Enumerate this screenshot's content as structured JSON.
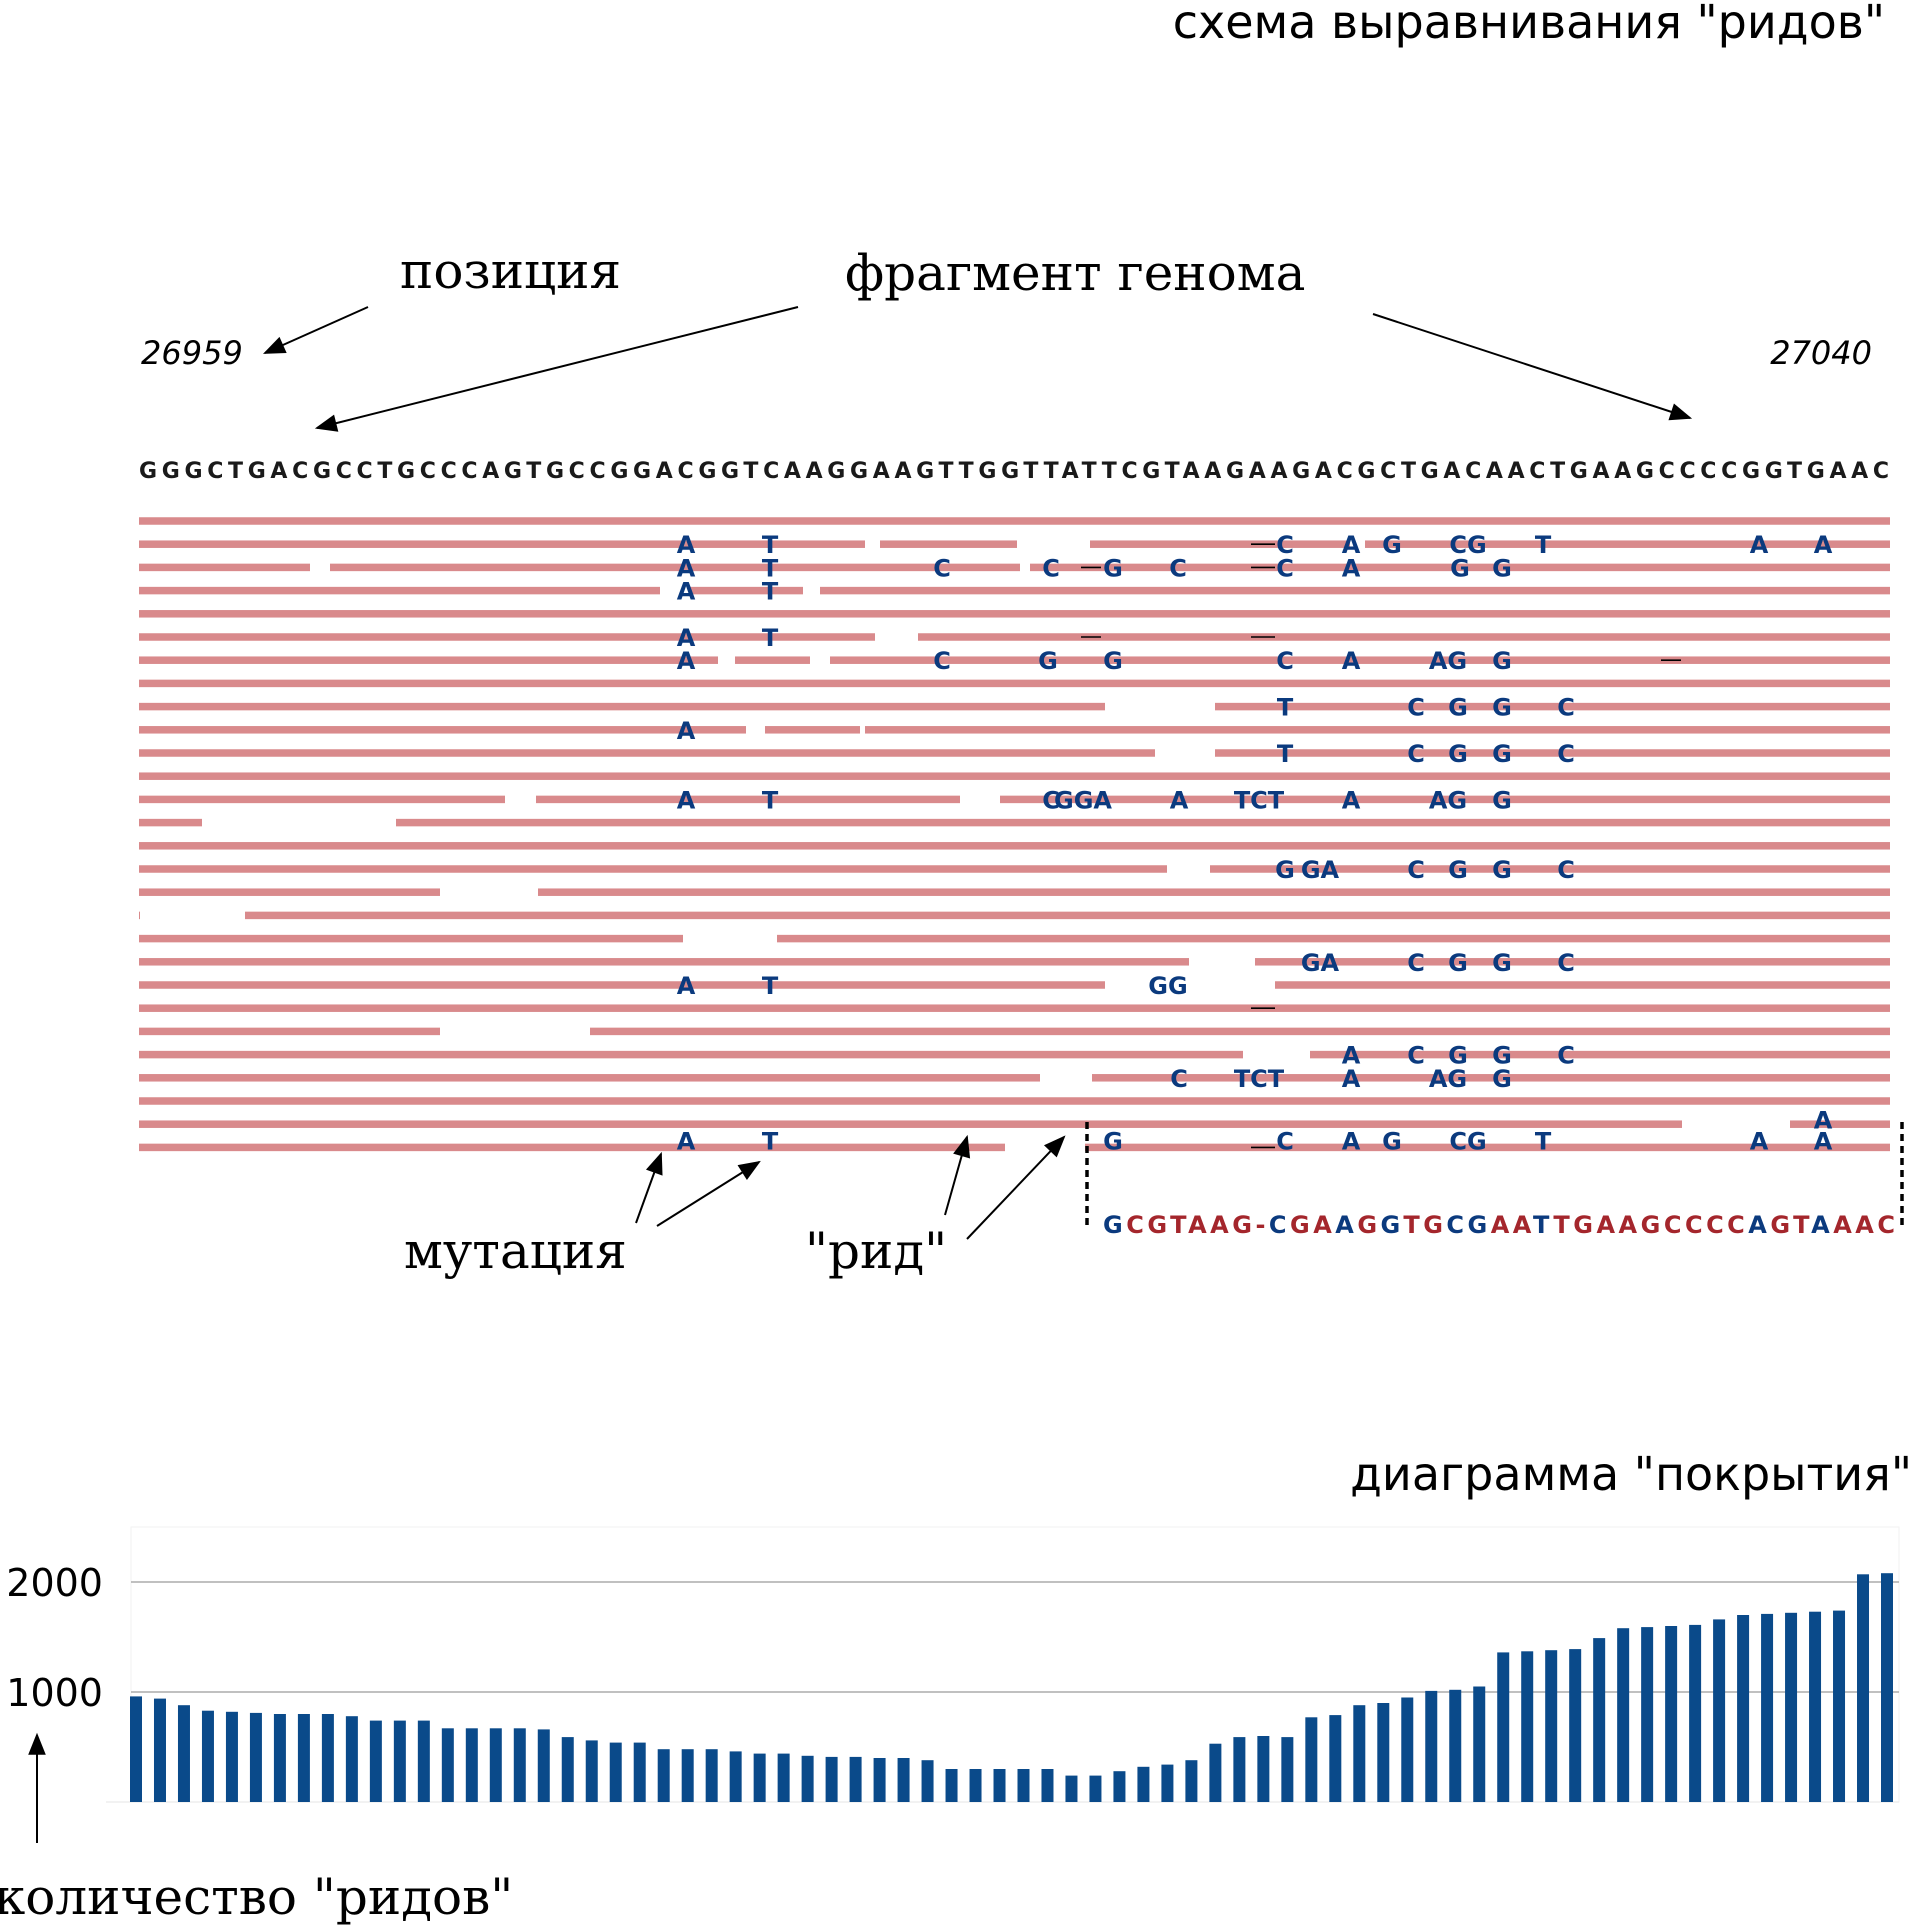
{
  "titles": {
    "alignment": "схема выравнивания \"ридов\"",
    "coverage": "диаграмма \"покрытия\""
  },
  "labels": {
    "position": "позиция",
    "genome_fragment": "фрагмент генома",
    "mutation": "мутация",
    "read": "\"рид\"",
    "read_count": "количество \"ридов\""
  },
  "positions": {
    "start": "26959",
    "end": "27040"
  },
  "reference": "GGGCTGACGCCTGCCCAGTGCCGGACGGTCAAGGAAGTTGGTTATTCGTAAGAAGACGCTGACAACTGAAGCCCCGGTGAAC",
  "read_detail": [
    [
      "G",
      "m"
    ],
    [
      "C",
      "r"
    ],
    [
      "G",
      "r"
    ],
    [
      "T",
      "r"
    ],
    [
      "A",
      "r"
    ],
    [
      "A",
      "r"
    ],
    [
      "G",
      "r"
    ],
    [
      "-",
      "r"
    ],
    [
      "C",
      "m"
    ],
    [
      "G",
      "r"
    ],
    [
      "A",
      "r"
    ],
    [
      "A",
      "m"
    ],
    [
      "G",
      "r"
    ],
    [
      "G",
      "m"
    ],
    [
      "T",
      "r"
    ],
    [
      "G",
      "r"
    ],
    [
      "C",
      "m"
    ],
    [
      "G",
      "m"
    ],
    [
      "A",
      "r"
    ],
    [
      "A",
      "r"
    ],
    [
      "T",
      "m"
    ],
    [
      "T",
      "r"
    ],
    [
      "G",
      "r"
    ],
    [
      "A",
      "r"
    ],
    [
      "A",
      "r"
    ],
    [
      "G",
      "r"
    ],
    [
      "C",
      "r"
    ],
    [
      "C",
      "r"
    ],
    [
      "C",
      "r"
    ],
    [
      "C",
      "r"
    ],
    [
      "A",
      "m"
    ],
    [
      "G",
      "r"
    ],
    [
      "T",
      "r"
    ],
    [
      "A",
      "m"
    ],
    [
      "A",
      "r"
    ],
    [
      "A",
      "r"
    ],
    [
      "C",
      "r"
    ]
  ],
  "colors": {
    "read": "#d98a8c",
    "mutation": "#0b3a7e",
    "bar": "#0a4a8a",
    "detail_ref": "#a4262c",
    "grid": "#9a9a9a"
  },
  "chart_data": {
    "type": "bar",
    "title": "диаграмма \"покрытия\"",
    "ylabel": "количество \"ридов\"",
    "ylim": [
      0,
      2350
    ],
    "yticks": [
      1000,
      2000
    ],
    "grid": true,
    "values": [
      960,
      940,
      880,
      830,
      820,
      810,
      800,
      800,
      800,
      780,
      740,
      740,
      740,
      670,
      670,
      670,
      670,
      660,
      590,
      560,
      540,
      540,
      480,
      480,
      480,
      460,
      440,
      440,
      420,
      410,
      410,
      400,
      400,
      380,
      300,
      300,
      300,
      300,
      300,
      240,
      240,
      280,
      320,
      340,
      380,
      530,
      590,
      600,
      590,
      770,
      790,
      880,
      900,
      950,
      1010,
      1020,
      1050,
      1360,
      1370,
      1380,
      1390,
      1490,
      1580,
      1590,
      1600,
      1610,
      1660,
      1700,
      1710,
      1720,
      1730,
      1740,
      2070,
      2080
    ]
  }
}
